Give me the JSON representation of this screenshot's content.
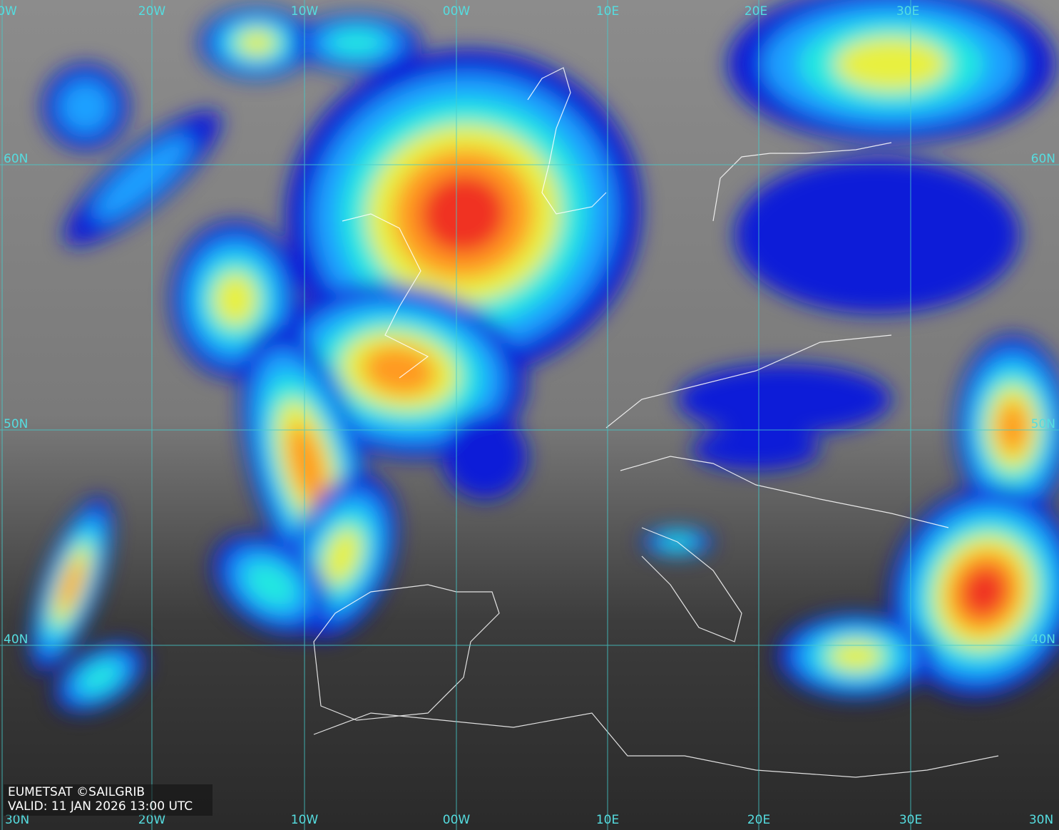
{
  "grid": {
    "top_labels": [
      "0W",
      "20W",
      "10W",
      "00W",
      "10E",
      "20E",
      "30E"
    ],
    "bottom_labels": [
      "30N",
      "20W",
      "10W",
      "00W",
      "10E",
      "20E",
      "30E",
      "30N"
    ],
    "left_labels": [
      "60N",
      "50N",
      "40N"
    ],
    "right_labels": [
      "60N",
      "50N",
      "40N"
    ]
  },
  "credit": {
    "line1": "EUMETSAT ©SAILGRIB",
    "line2": "VALID:  11 JAN 2026 13:00 UTC"
  }
}
